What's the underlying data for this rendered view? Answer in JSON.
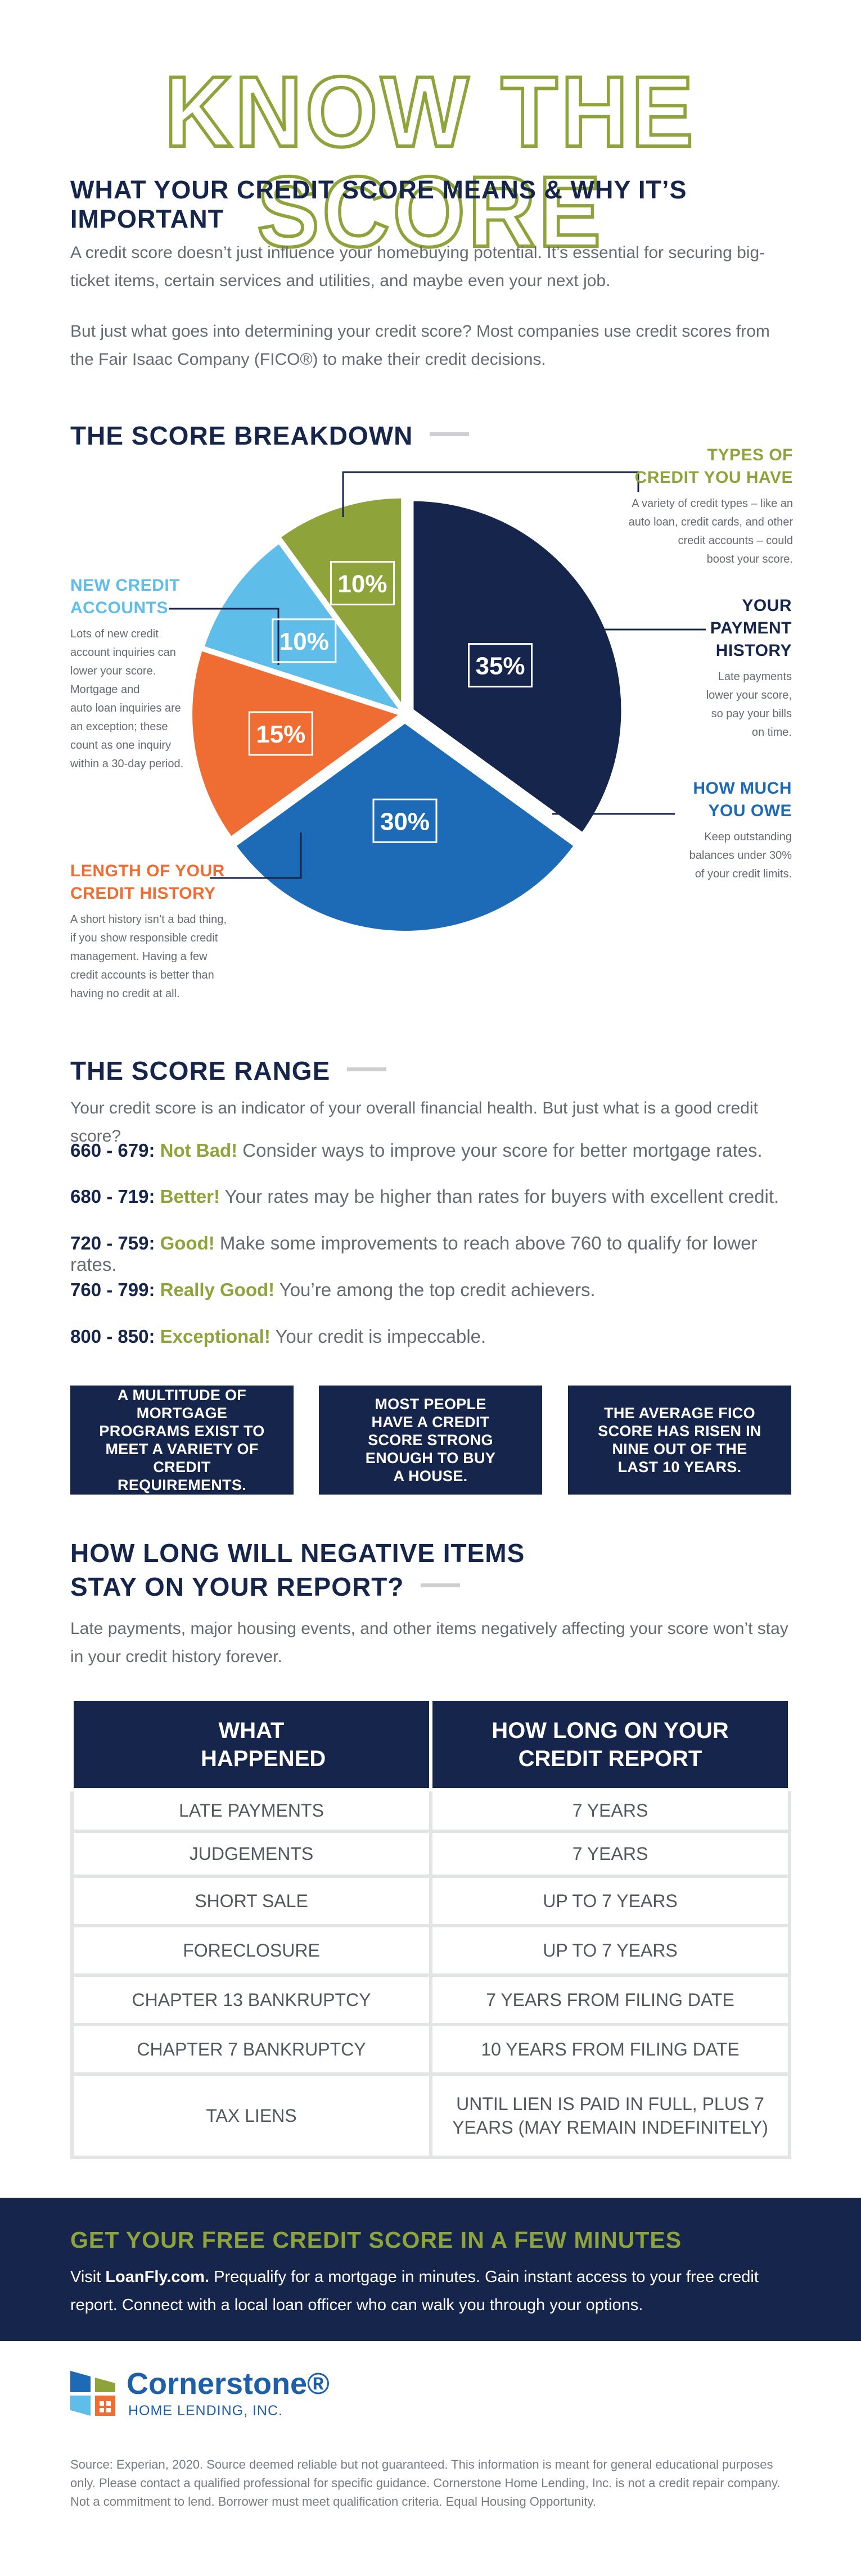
{
  "header": {
    "title": "KNOW THE SCORE",
    "subtitle": "WHAT YOUR CREDIT SCORE MEANS & WHY IT’S IMPORTANT",
    "paragraph1": "A credit score doesn’t just influence your homebuying potential. It’s essential for securing big-ticket items, certain services and utilities, and maybe even your next job.",
    "paragraph2": "But just what goes into determining your credit score? Most companies use credit scores from the Fair Isaac Company (FICO®) to make their credit decisions."
  },
  "breakdown": {
    "heading": "THE SCORE BREAKDOWN",
    "callouts": {
      "types": {
        "title_line1": "TYPES OF",
        "title_line2": "CREDIT YOU HAVE",
        "body": [
          "A variety of credit types – like an",
          "auto loan, credit cards, and other",
          "credit accounts – could",
          "boost your score."
        ]
      },
      "payment": {
        "title_line1": "YOUR",
        "title_line2": "PAYMENT",
        "title_line3": "HISTORY",
        "body": [
          "Late payments",
          "lower your score,",
          "so pay your bills",
          "on time."
        ]
      },
      "owe": {
        "title_line1": "HOW MUCH",
        "title_line2": "YOU OWE",
        "body": [
          "Keep outstanding",
          "balances under 30%",
          "of your credit limits."
        ]
      },
      "new": {
        "title_line1": "NEW CREDIT",
        "title_line2": "ACCOUNTS",
        "body": [
          "Lots of new credit",
          "account inquiries can",
          "lower your score.",
          "Mortgage and",
          "auto loan inquiries are",
          "an exception; these",
          "count as one inquiry",
          "within a 30-day period."
        ]
      },
      "length": {
        "title_line1": "LENGTH OF YOUR",
        "title_line2": "CREDIT HISTORY",
        "body": [
          "A short history isn’t a bad thing,",
          "if you show responsible credit",
          "management. Having a few",
          "credit accounts is better than",
          "having no credit at all."
        ]
      }
    }
  },
  "chart_data": {
    "type": "pie",
    "title": "THE SCORE BREAKDOWN",
    "categories": [
      "YOUR PAYMENT HISTORY",
      "HOW MUCH YOU OWE",
      "LENGTH OF YOUR CREDIT HISTORY",
      "NEW CREDIT ACCOUNTS",
      "TYPES OF CREDIT YOU HAVE"
    ],
    "values": [
      35,
      30,
      15,
      10,
      10
    ],
    "labels": [
      "35%",
      "30%",
      "15%",
      "10%",
      "10%"
    ],
    "colors": [
      "#15254b",
      "#1d6bb6",
      "#ef6c33",
      "#5fbde9",
      "#8ea43b"
    ]
  },
  "range": {
    "heading": "THE SCORE RANGE",
    "intro": "Your credit score is an indicator of your overall financial health. But just what is a good credit score?",
    "rows": [
      {
        "range": "660 - 679:",
        "quality": "Not Bad!",
        "text": " Consider ways to improve your score for better mortgage rates."
      },
      {
        "range": "680 - 719:",
        "quality": "Better!",
        "text": " Your rates may be higher than rates for buyers with excellent credit."
      },
      {
        "range": "720 - 759:",
        "quality": "Good!",
        "text": " Make some improvements to reach above 760 to qualify for lower rates."
      },
      {
        "range": "760 - 799:",
        "quality": "Really Good!",
        "text": " You’re among the top credit achievers."
      },
      {
        "range": "800 - 850:",
        "quality": "Exceptional!",
        "text": " Your credit is impeccable."
      }
    ],
    "facts": [
      "A MULTITUDE OF MORTGAGE PROGRAMS EXIST TO MEET A VARIETY OF CREDIT REQUIREMENTS.",
      "MOST PEOPLE HAVE A CREDIT SCORE STRONG ENOUGH TO BUY A HOUSE.",
      "THE AVERAGE FICO SCORE HAS RISEN IN NINE OUT OF THE LAST 10 YEARS."
    ]
  },
  "negative": {
    "heading_line1": "HOW LONG WILL NEGATIVE ITEMS",
    "heading_line2": "STAY ON YOUR REPORT?",
    "intro": "Late payments, major housing events, and other items negatively affecting your score won’t stay in your credit history forever.",
    "col1": "WHAT HAPPENED",
    "col2": "HOW LONG ON YOUR CREDIT REPORT",
    "rows": [
      [
        "LATE PAYMENTS",
        "7 YEARS"
      ],
      [
        "JUDGEMENTS",
        "7 YEARS"
      ],
      [
        "SHORT SALE",
        "UP TO 7 YEARS"
      ],
      [
        "FORECLOSURE",
        "UP TO 7 YEARS"
      ],
      [
        "CHAPTER 13 BANKRUPTCY",
        "7 YEARS FROM FILING DATE"
      ],
      [
        "CHAPTER 7 BANKRUPTCY",
        "10 YEARS FROM FILING DATE"
      ],
      [
        "TAX LIENS",
        "UNTIL LIEN IS PAID IN FULL, PLUS 7 YEARS (MAY REMAIN INDEFINITELY)"
      ]
    ]
  },
  "cta": {
    "heading": "GET YOUR FREE CREDIT SCORE IN A FEW MINUTES",
    "prefix": "Visit ",
    "link": "LoanFly.com.",
    "body": " Prequalify for a mortgage in minutes. Gain instant access to your free credit report. Connect with a local loan officer who can walk you through your options."
  },
  "footer": {
    "logo_name": "Cornerstone®",
    "logo_sub": "HOME LENDING, INC.",
    "disclaimer": "Source: Experian, 2020. Source deemed reliable but not guaranteed. This information is meant for general educational purposes only. Please contact a qualified professional for specific guidance. Cornerstone Home Lending, Inc. is not a credit repair company. Not a commitment to lend. Borrower must meet qualification criteria. Equal Housing Opportunity."
  }
}
